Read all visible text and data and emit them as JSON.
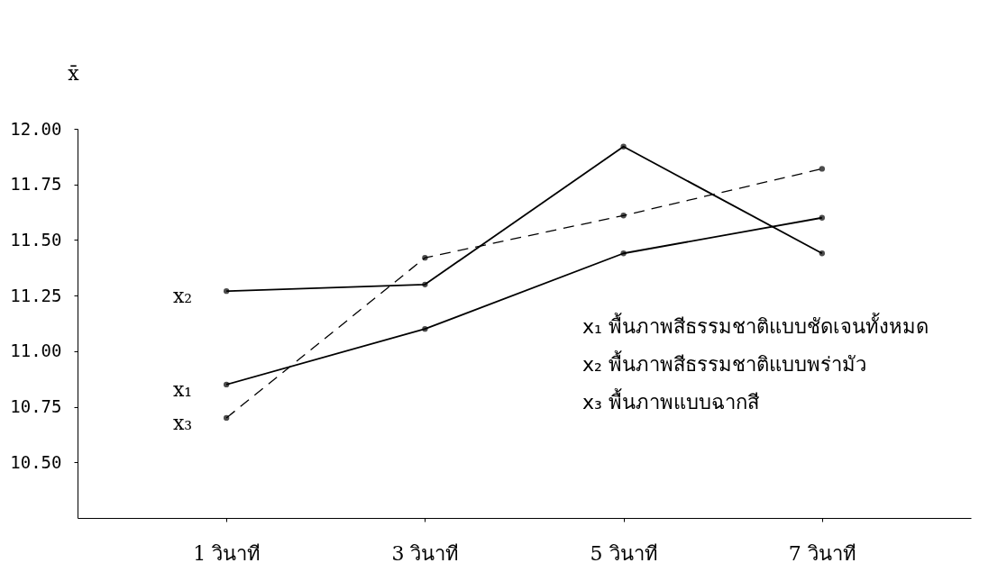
{
  "chart_data": {
    "type": "line",
    "ylabel": "x̄",
    "categories": [
      "1  วินาที",
      "3  วินาที",
      "5  วินาที",
      "7  วินาที"
    ],
    "series": [
      {
        "name": "x₁",
        "color": "#000000",
        "line_style": "solid",
        "values": [
          10.85,
          11.1,
          11.44,
          11.6
        ]
      },
      {
        "name": "x₂",
        "color": "#000000",
        "line_style": "solid",
        "values": [
          11.27,
          11.3,
          11.92,
          11.44
        ]
      },
      {
        "name": "x₃",
        "color": "#000000",
        "line_style": "dashed",
        "values": [
          10.7,
          11.42,
          11.61,
          11.82
        ]
      }
    ],
    "ylim": [
      10.25,
      12.0
    ],
    "yticks": [
      {
        "value": 10.5,
        "label": "10.50"
      },
      {
        "value": 10.75,
        "label": "10.75"
      },
      {
        "value": 11.0,
        "label": "11.00"
      },
      {
        "value": 11.25,
        "label": "11.25"
      },
      {
        "value": 11.5,
        "label": "11.50"
      },
      {
        "value": 11.75,
        "label": "11.75"
      },
      {
        "value": 12.0,
        "label": "12.00"
      }
    ],
    "marker": "circle",
    "grid": false,
    "annotations": [
      "x₁  พื้นภาพสีธรรมชาติแบบชัดเจนทั้งหมด",
      "x₂  พื้นภาพสีธรรมชาติแบบพร่ามัว",
      "x₃  พื้นภาพแบบฉากสี"
    ]
  }
}
